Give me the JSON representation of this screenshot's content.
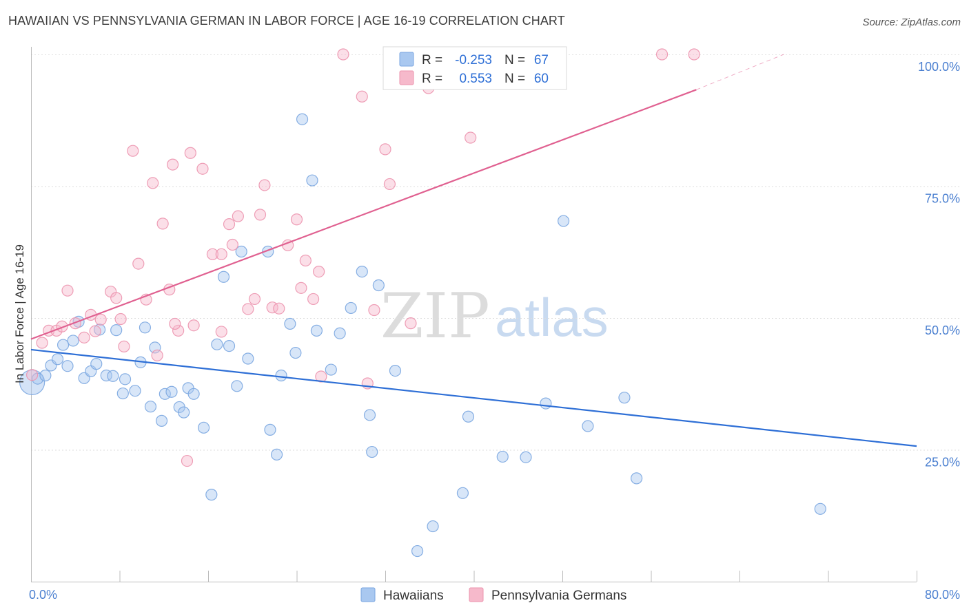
{
  "title": "HAWAIIAN VS PENNSYLVANIA GERMAN IN LABOR FORCE | AGE 16-19 CORRELATION CHART",
  "source": "Source: ZipAtlas.com",
  "watermark": {
    "zip": "ZIP",
    "atlas": "atlas"
  },
  "legend": {
    "rows": [
      {
        "r_label": "R =",
        "r_value": "-0.253",
        "n_label": "N =",
        "n_value": "67"
      },
      {
        "r_label": "R =",
        "r_value": "0.553",
        "n_label": "N =",
        "n_value": "60"
      }
    ]
  },
  "bottom_legend": [
    "Hawaiians",
    "Pennsylvania Germans"
  ],
  "colors": {
    "blue_fill": "#a9c8f0",
    "blue_stroke": "#7aa6e0",
    "blue_line": "#2e6fd6",
    "pink_fill": "#f6b9cb",
    "pink_stroke": "#ec93ae",
    "pink_line": "#e06090",
    "tick_text": "#4a7fd0"
  },
  "chart_data": {
    "type": "scatter",
    "title": "HAWAIIAN VS PENNSYLVANIA GERMAN IN LABOR FORCE | AGE 16-19 CORRELATION CHART",
    "xlabel": "",
    "ylabel": "In Labor Force | Age 16-19",
    "xlim": [
      0,
      80
    ],
    "ylim": [
      0,
      102
    ],
    "x_tick_labels": [
      "0.0%",
      "80.0%"
    ],
    "y_ticks": [
      25,
      50,
      75,
      100
    ],
    "y_tick_labels": [
      "25.0%",
      "50.0%",
      "75.0%",
      "100.0%"
    ],
    "grid": true,
    "legend_position": "top-center",
    "series": [
      {
        "name": "Hawaiians",
        "r": -0.253,
        "n": 67,
        "trend": {
          "x": [
            0,
            80
          ],
          "y": [
            44.0,
            25.7
          ]
        },
        "points": [
          [
            0.1,
            37.8
          ],
          [
            0.6,
            38.5
          ],
          [
            1.3,
            39.1
          ],
          [
            1.8,
            41.0
          ],
          [
            2.4,
            42.2
          ],
          [
            2.9,
            44.9
          ],
          [
            3.3,
            40.9
          ],
          [
            3.8,
            45.7
          ],
          [
            4.3,
            49.3
          ],
          [
            4.8,
            38.6
          ],
          [
            5.4,
            39.9
          ],
          [
            5.9,
            41.3
          ],
          [
            6.2,
            47.8
          ],
          [
            6.8,
            39.1
          ],
          [
            7.4,
            39.0
          ],
          [
            7.7,
            47.7
          ],
          [
            8.3,
            35.7
          ],
          [
            8.5,
            38.4
          ],
          [
            9.4,
            36.2
          ],
          [
            9.9,
            41.6
          ],
          [
            10.3,
            48.2
          ],
          [
            10.8,
            33.2
          ],
          [
            11.2,
            44.4
          ],
          [
            11.8,
            30.5
          ],
          [
            12.1,
            35.6
          ],
          [
            12.7,
            36.0
          ],
          [
            13.4,
            33.1
          ],
          [
            13.8,
            32.1
          ],
          [
            14.2,
            36.7
          ],
          [
            14.7,
            35.6
          ],
          [
            15.6,
            29.2
          ],
          [
            16.3,
            16.5
          ],
          [
            16.8,
            45.0
          ],
          [
            17.4,
            57.8
          ],
          [
            17.9,
            44.7
          ],
          [
            18.6,
            37.1
          ],
          [
            19.0,
            62.6
          ],
          [
            19.6,
            42.3
          ],
          [
            21.4,
            62.6
          ],
          [
            21.6,
            28.8
          ],
          [
            22.2,
            24.1
          ],
          [
            22.6,
            39.1
          ],
          [
            23.4,
            48.9
          ],
          [
            23.9,
            43.4
          ],
          [
            24.5,
            87.7
          ],
          [
            25.4,
            76.1
          ],
          [
            25.8,
            47.6
          ],
          [
            27.1,
            40.2
          ],
          [
            27.9,
            47.1
          ],
          [
            28.9,
            51.9
          ],
          [
            29.9,
            58.8
          ],
          [
            30.6,
            31.6
          ],
          [
            30.8,
            24.6
          ],
          [
            31.4,
            56.2
          ],
          [
            32.9,
            40.0
          ],
          [
            34.9,
            5.8
          ],
          [
            36.3,
            10.5
          ],
          [
            39.0,
            16.8
          ],
          [
            39.5,
            31.3
          ],
          [
            42.6,
            23.7
          ],
          [
            44.7,
            23.6
          ],
          [
            46.5,
            33.8
          ],
          [
            48.1,
            68.4
          ],
          [
            50.3,
            29.5
          ],
          [
            53.6,
            34.9
          ],
          [
            54.7,
            19.6
          ],
          [
            71.3,
            13.8
          ]
        ]
      },
      {
        "name": "Pennsylvania Germans",
        "r": 0.553,
        "n": 60,
        "trend": {
          "x": [
            0,
            60.1
          ],
          "y": [
            46.0,
            93.3
          ]
        },
        "trend_dashed": {
          "x": [
            60.1,
            68.0
          ],
          "y": [
            93.3,
            100.0
          ]
        },
        "points": [
          [
            0.1,
            39.2
          ],
          [
            1.0,
            45.3
          ],
          [
            1.6,
            47.6
          ],
          [
            2.3,
            47.6
          ],
          [
            2.8,
            48.4
          ],
          [
            3.3,
            55.2
          ],
          [
            4.0,
            49.0
          ],
          [
            4.8,
            46.3
          ],
          [
            5.4,
            50.6
          ],
          [
            5.8,
            47.5
          ],
          [
            6.3,
            49.7
          ],
          [
            7.2,
            55.0
          ],
          [
            7.7,
            53.8
          ],
          [
            8.1,
            49.8
          ],
          [
            8.4,
            44.6
          ],
          [
            9.2,
            81.7
          ],
          [
            9.7,
            60.3
          ],
          [
            10.4,
            53.5
          ],
          [
            11.0,
            75.6
          ],
          [
            11.4,
            42.9
          ],
          [
            11.9,
            67.9
          ],
          [
            12.5,
            55.4
          ],
          [
            12.8,
            79.1
          ],
          [
            13.3,
            47.6
          ],
          [
            14.4,
            81.3
          ],
          [
            14.7,
            48.6
          ],
          [
            15.5,
            78.3
          ],
          [
            16.4,
            62.1
          ],
          [
            17.2,
            62.1
          ],
          [
            17.2,
            47.4
          ],
          [
            17.9,
            67.8
          ],
          [
            18.2,
            63.9
          ],
          [
            18.7,
            69.3
          ],
          [
            19.6,
            51.7
          ],
          [
            20.2,
            53.6
          ],
          [
            20.7,
            69.6
          ],
          [
            21.1,
            75.2
          ],
          [
            21.8,
            52.0
          ],
          [
            22.4,
            51.8
          ],
          [
            23.2,
            63.8
          ],
          [
            24.0,
            68.7
          ],
          [
            24.4,
            55.7
          ],
          [
            24.8,
            60.9
          ],
          [
            25.5,
            53.6
          ],
          [
            26.0,
            58.8
          ],
          [
            26.2,
            38.9
          ],
          [
            28.2,
            100.0
          ],
          [
            29.9,
            92.0
          ],
          [
            30.4,
            37.6
          ],
          [
            31.0,
            51.5
          ],
          [
            32.0,
            82.0
          ],
          [
            32.4,
            75.4
          ],
          [
            34.3,
            49.0
          ],
          [
            35.9,
            93.6
          ],
          [
            37.7,
            100.0
          ],
          [
            39.7,
            84.2
          ],
          [
            57.0,
            100.0
          ],
          [
            59.9,
            100.0
          ],
          [
            14.1,
            22.9
          ],
          [
            13.0,
            48.9
          ]
        ]
      }
    ]
  }
}
